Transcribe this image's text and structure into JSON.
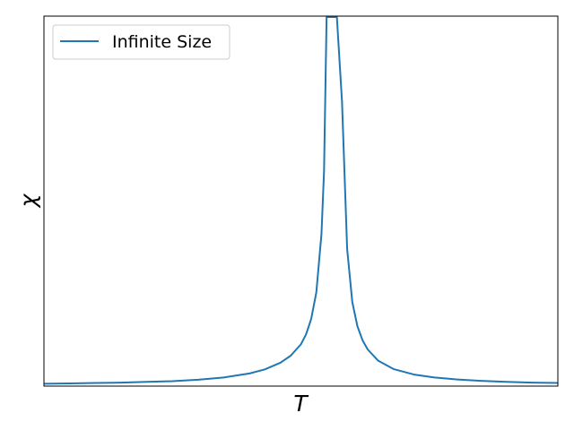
{
  "chart_data": {
    "type": "line",
    "title": "",
    "xlabel": "T",
    "ylabel": "χ",
    "xlim": [
      0,
      1
    ],
    "ylim": [
      0,
      1
    ],
    "grid": false,
    "legend_location": "top-left",
    "color": "#1f77b4",
    "series": [
      {
        "name": "Infinite Size",
        "x": [
          0.0,
          0.05,
          0.1,
          0.15,
          0.2,
          0.25,
          0.3,
          0.35,
          0.4,
          0.43,
          0.46,
          0.48,
          0.5,
          0.51,
          0.52,
          0.53,
          0.54,
          0.545,
          0.55,
          0.555,
          0.56,
          0.565,
          0.57,
          0.58,
          0.59,
          0.6,
          0.61,
          0.62,
          0.63,
          0.65,
          0.68,
          0.72,
          0.76,
          0.8,
          0.85,
          0.9,
          0.95,
          1.0
        ],
        "y": [
          0.004,
          0.005,
          0.006,
          0.007,
          0.009,
          0.011,
          0.015,
          0.021,
          0.032,
          0.043,
          0.061,
          0.08,
          0.111,
          0.138,
          0.18,
          0.252,
          0.41,
          0.58,
          1.0,
          1.0,
          1.0,
          1.0,
          1.0,
          0.77,
          0.37,
          0.226,
          0.16,
          0.122,
          0.097,
          0.067,
          0.044,
          0.029,
          0.021,
          0.016,
          0.012,
          0.009,
          0.007,
          0.006
        ]
      }
    ]
  }
}
